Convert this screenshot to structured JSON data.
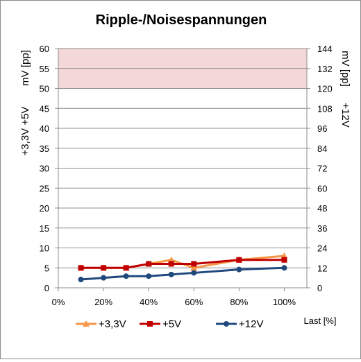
{
  "chart_data": {
    "type": "line",
    "title": "Ripple-/Noisespannungen",
    "x": [
      "10%",
      "20%",
      "30%",
      "40%",
      "50%",
      "60%",
      "80%",
      "100%"
    ],
    "x_numeric": [
      10,
      20,
      30,
      40,
      50,
      60,
      80,
      100
    ],
    "xlim": [
      0,
      110
    ],
    "x_ticks": [
      "0%",
      "20%",
      "40%",
      "60%",
      "80%",
      "100%"
    ],
    "x_tick_values": [
      0,
      20,
      40,
      60,
      80,
      100
    ],
    "xlabel": "Last [%]",
    "ylabel_left_line1": "+3,3V +5V",
    "ylabel_left_line2": "mV [pp]",
    "ylabel_right_line1": "+12V",
    "ylabel_right_line2": "mV [pp]",
    "ylim": [
      0,
      60
    ],
    "ylim_right": [
      0,
      144
    ],
    "y_ticks": [
      "0",
      "5",
      "10",
      "15",
      "20",
      "25",
      "30",
      "35",
      "40",
      "45",
      "50",
      "55",
      "60"
    ],
    "y_tick_values": [
      0,
      5,
      10,
      15,
      20,
      25,
      30,
      35,
      40,
      45,
      50,
      55,
      60
    ],
    "y2_ticks": [
      "0",
      "12",
      "24",
      "36",
      "48",
      "60",
      "72",
      "84",
      "96",
      "108",
      "120",
      "132",
      "144"
    ],
    "y2_tick_values": [
      0,
      12,
      24,
      36,
      48,
      60,
      72,
      84,
      96,
      108,
      120,
      132,
      144
    ],
    "limit_band": {
      "from": 50,
      "to": 60,
      "color": "#f4d7d7"
    },
    "grid": true,
    "legend_position": "bottom",
    "series": [
      {
        "name": "+3,3V",
        "axis": "left",
        "color": "#f79646",
        "marker": "triangle",
        "values": [
          5,
          5,
          5,
          6,
          7,
          5,
          7,
          8
        ]
      },
      {
        "name": "+5V",
        "axis": "left",
        "color": "#c00000",
        "marker": "square",
        "values": [
          5,
          5,
          5,
          6,
          6,
          6,
          7,
          7
        ]
      },
      {
        "name": "+12V",
        "axis": "right",
        "color": "#1f497d",
        "marker": "circle",
        "values": [
          5,
          6,
          7,
          7,
          8,
          9,
          11,
          12
        ]
      }
    ]
  }
}
